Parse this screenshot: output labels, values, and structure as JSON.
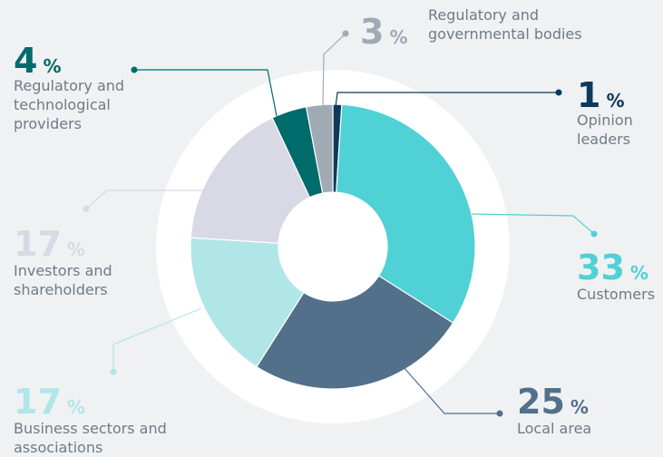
{
  "chart_data": {
    "type": "pie",
    "donut": true,
    "unit": "%",
    "categories": [
      [
        "Opinion",
        "leaders"
      ],
      [
        "Customers"
      ],
      [
        "Local area"
      ],
      [
        "Business sectors and",
        "associations"
      ],
      [
        "Investors and",
        "shareholders"
      ],
      [
        "Regulatory and",
        "technological",
        "providers"
      ],
      [
        "Regulatory and",
        "governmental bodies"
      ]
    ],
    "values": [
      1,
      33,
      25,
      17,
      17,
      4,
      3
    ],
    "colors": [
      "#0d3a5c",
      "#4fd1d5",
      "#52708a",
      "#b0e6e8",
      "#d8d9e4",
      "#006b6b",
      "#a0aab5"
    ]
  }
}
